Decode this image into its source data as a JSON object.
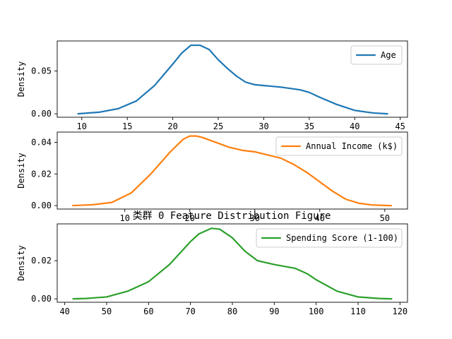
{
  "chart_data": [
    {
      "type": "line",
      "title": "",
      "xlabel": "",
      "ylabel": "Density",
      "xlim": [
        7.3,
        45.8
      ],
      "ylim": [
        -0.004,
        0.085
      ],
      "xticks": [
        10,
        15,
        20,
        25,
        30,
        35,
        40,
        45
      ],
      "yticks": [
        0.0,
        0.05
      ],
      "ytick_format": 2,
      "grid": false,
      "legend_position": "top-right",
      "series": [
        {
          "name": "Age",
          "color": "#1f77b4",
          "x": [
            9.6,
            12,
            14,
            16,
            18,
            20,
            21,
            22,
            23,
            24,
            25,
            26,
            27,
            28,
            29,
            30,
            32,
            34,
            35,
            36,
            38,
            40,
            42,
            43.6
          ],
          "y": [
            0.0,
            0.002,
            0.006,
            0.015,
            0.033,
            0.058,
            0.071,
            0.08,
            0.08,
            0.075,
            0.063,
            0.053,
            0.044,
            0.037,
            0.034,
            0.033,
            0.031,
            0.028,
            0.025,
            0.02,
            0.011,
            0.004,
            0.001,
            0.0
          ]
        }
      ]
    },
    {
      "type": "line",
      "title": "",
      "xlabel": "",
      "ylabel": "Density",
      "xlim": [
        -0.4,
        53.5
      ],
      "ylim": [
        -0.0022,
        0.0465
      ],
      "xticks": [
        10,
        20,
        30,
        40,
        50
      ],
      "yticks": [
        0.0,
        0.02,
        0.04
      ],
      "ytick_format": 2,
      "grid": false,
      "legend_position": "top-right",
      "series": [
        {
          "name": "Annual Income (k$)",
          "color": "#ff7f0e",
          "x": [
            2,
            5,
            8,
            11,
            14,
            17,
            19,
            20,
            21,
            22,
            24,
            26,
            28,
            30,
            32,
            34,
            36,
            38,
            40,
            42,
            44,
            46,
            48,
            50,
            51
          ],
          "y": [
            0.0,
            0.0005,
            0.002,
            0.008,
            0.02,
            0.034,
            0.042,
            0.044,
            0.044,
            0.043,
            0.04,
            0.037,
            0.035,
            0.034,
            0.032,
            0.03,
            0.026,
            0.021,
            0.015,
            0.009,
            0.004,
            0.0015,
            0.0004,
            0.0001,
            0.0
          ]
        }
      ]
    },
    {
      "type": "line",
      "title": "类群 0 Feature Distribution Figure",
      "xlabel": "",
      "ylabel": "Density",
      "xlim": [
        38.2,
        121.8
      ],
      "ylim": [
        -0.0018,
        0.0393
      ],
      "xticks": [
        40,
        50,
        60,
        70,
        80,
        90,
        100,
        110,
        120
      ],
      "yticks": [
        0.0,
        0.02
      ],
      "ytick_format": 2,
      "grid": false,
      "legend_position": "top-right",
      "series": [
        {
          "name": "Spending Score (1-100)",
          "color": "#2ca02c",
          "x": [
            42,
            45,
            50,
            55,
            60,
            65,
            70,
            72,
            75,
            77,
            80,
            83,
            86,
            90,
            95,
            98,
            100,
            105,
            110,
            115,
            118
          ],
          "y": [
            0.0,
            0.0002,
            0.001,
            0.004,
            0.009,
            0.018,
            0.03,
            0.034,
            0.037,
            0.0365,
            0.032,
            0.025,
            0.02,
            0.018,
            0.016,
            0.013,
            0.01,
            0.004,
            0.001,
            0.0002,
            0.0
          ]
        }
      ]
    }
  ]
}
